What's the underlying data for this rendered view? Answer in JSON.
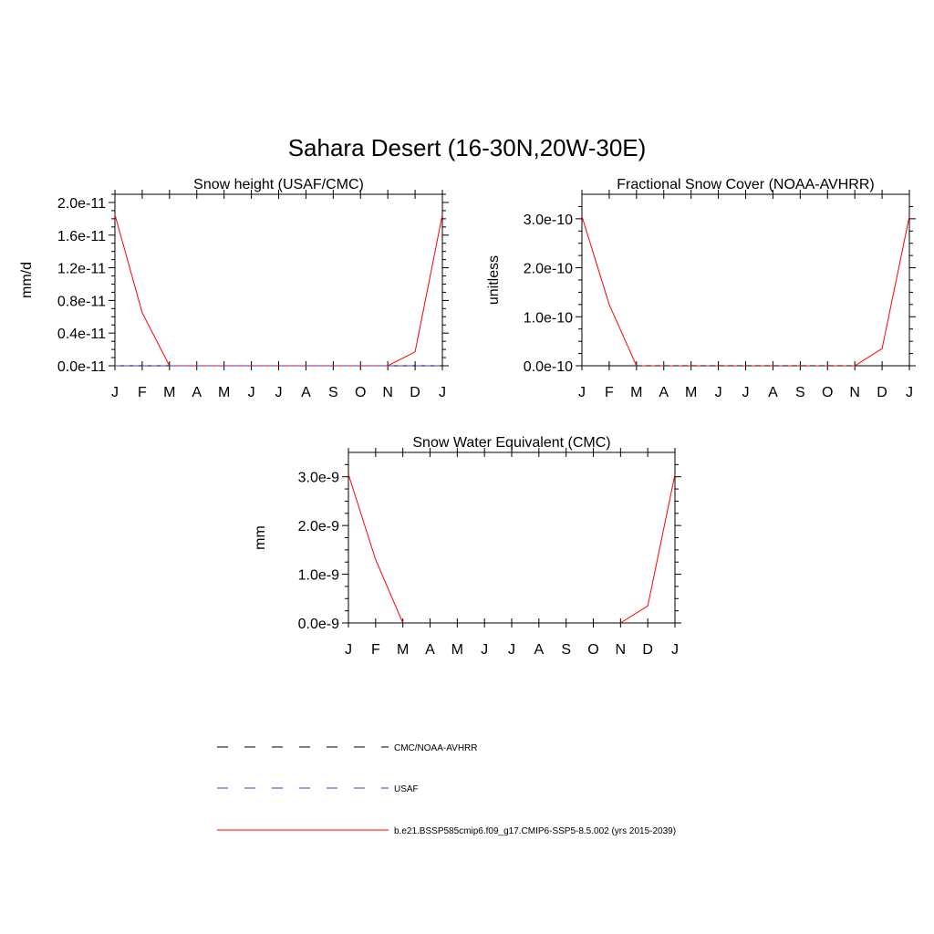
{
  "figure_title": "Sahara Desert (16-30N,20W-30E)",
  "colors": {
    "model": "#ff0000",
    "obs1": "#000000",
    "obs2": "#3b3bd1"
  },
  "legend": [
    {
      "label": "CMC/NOAA-AVHRR",
      "style": "dashed",
      "color": "#000000"
    },
    {
      "label": "USAF",
      "style": "dashed",
      "color": "#3b3bd1"
    },
    {
      "label": "b.e21.BSSP585cmip6.f09_g17.CMIP6-SSP5-8.5.002 (yrs 2015-2039)",
      "style": "solid",
      "color": "#ff0000"
    }
  ],
  "chart_data": [
    {
      "type": "line",
      "title": "Snow height (USAF/CMC)",
      "ylabel": "mm/d",
      "xlabel": "",
      "categories": [
        "J",
        "F",
        "M",
        "A",
        "M",
        "J",
        "J",
        "A",
        "S",
        "O",
        "N",
        "D",
        "J"
      ],
      "ylim": [
        0,
        2.1e-11
      ],
      "yticks": [
        0,
        4e-12,
        8e-12,
        1.2e-11,
        1.6e-11,
        2e-11
      ],
      "ytick_labels": [
        "0.0e-11",
        "0.4e-11",
        "0.8e-11",
        "1.2e-11",
        "1.6e-11",
        "2.0e-11"
      ],
      "series": [
        {
          "name": "b.e21.BSSP585cmip6.f09_g17.CMIP6-SSP5-8.5.002 (yrs 2015-2039)",
          "style": "solid",
          "values": [
            1.85e-11,
            6.5e-12,
            0,
            0,
            0,
            0,
            0,
            0,
            0,
            0,
            0,
            1.7e-12,
            1.85e-11
          ]
        },
        {
          "name": "CMC/NOAA-AVHRR",
          "style": "dashed",
          "values": [
            0,
            0,
            0,
            0,
            0,
            0,
            0,
            0,
            0,
            0,
            0,
            0,
            0
          ]
        },
        {
          "name": "USAF",
          "style": "dashed",
          "values": [
            0,
            0,
            0,
            0,
            0,
            0,
            0,
            0,
            0,
            0,
            0,
            0,
            0
          ]
        }
      ]
    },
    {
      "type": "line",
      "title": "Fractional Snow Cover (NOAA-AVHRR)",
      "ylabel": "unitless",
      "xlabel": "",
      "categories": [
        "J",
        "F",
        "M",
        "A",
        "M",
        "J",
        "J",
        "A",
        "S",
        "O",
        "N",
        "D",
        "J"
      ],
      "ylim": [
        0,
        3.5e-10
      ],
      "yticks": [
        0,
        1e-10,
        2e-10,
        3e-10
      ],
      "ytick_labels": [
        "0.0e-10",
        "1.0e-10",
        "2.0e-10",
        "3.0e-10"
      ],
      "series": [
        {
          "name": "b.e21.BSSP585cmip6.f09_g17.CMIP6-SSP5-8.5.002 (yrs 2015-2039)",
          "style": "solid",
          "values": [
            3.05e-10,
            1.25e-10,
            0,
            0,
            0,
            0,
            0,
            0,
            0,
            0,
            0,
            3.5e-11,
            3.05e-10
          ]
        },
        {
          "name": "CMC/NOAA-AVHRR",
          "style": "dashed",
          "values": [
            0,
            0,
            0,
            0,
            0,
            0,
            0,
            0,
            0,
            0,
            0,
            0,
            0
          ]
        }
      ]
    },
    {
      "type": "line",
      "title": "Snow Water Equivalent (CMC)",
      "ylabel": "mm",
      "xlabel": "",
      "categories": [
        "J",
        "F",
        "M",
        "A",
        "M",
        "J",
        "J",
        "A",
        "S",
        "O",
        "N",
        "D",
        "J"
      ],
      "ylim": [
        0,
        3.5e-09
      ],
      "yticks": [
        0,
        1e-09,
        2e-09,
        3e-09
      ],
      "ytick_labels": [
        "0.0e-9",
        "1.0e-9",
        "2.0e-9",
        "3.0e-9"
      ],
      "series": [
        {
          "name": "b.e21.BSSP585cmip6.f09_g17.CMIP6-SSP5-8.5.002 (yrs 2015-2039)",
          "style": "solid",
          "values": [
            3.05e-09,
            1.3e-09,
            0,
            null,
            null,
            null,
            null,
            null,
            null,
            null,
            0,
            3.5e-10,
            3.05e-09
          ]
        }
      ]
    }
  ]
}
